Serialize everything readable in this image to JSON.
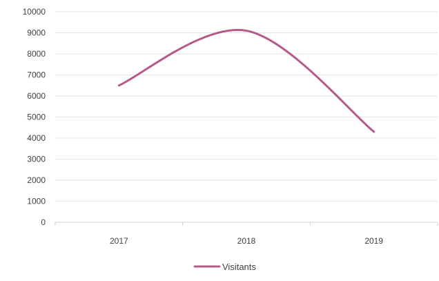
{
  "chart_data": {
    "type": "line",
    "categories": [
      "2017",
      "2018",
      "2019"
    ],
    "series": [
      {
        "name": "Visitants",
        "values": [
          6500,
          9100,
          4300
        ],
        "color": "#b5588a",
        "smooth": true
      }
    ],
    "ylim": [
      0,
      10000
    ],
    "yticks": [
      0,
      1000,
      2000,
      3000,
      4000,
      5000,
      6000,
      7000,
      8000,
      9000,
      10000
    ],
    "grid": true,
    "legend": "bottom"
  }
}
